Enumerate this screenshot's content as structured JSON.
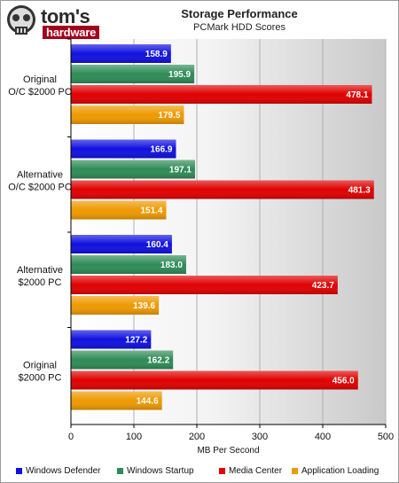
{
  "header": {
    "brand": "tom's",
    "brand_sub": "hardware",
    "title": "Storage Performance",
    "subtitle": "PCMark HDD Scores"
  },
  "colors": {
    "Windows Defender": "#1010e0",
    "Windows Startup": "#2e8b57",
    "Media Center": "#e00000",
    "Application Loading": "#ee9900"
  },
  "chart_data": {
    "type": "bar",
    "orientation": "horizontal",
    "title": "Storage Performance",
    "subtitle": "PCMark HDD Scores",
    "xlabel": "MB Per Second",
    "ylabel": "",
    "xlim": [
      0,
      500
    ],
    "xticks": [
      0,
      100,
      200,
      300,
      400,
      500
    ],
    "grid": true,
    "legend_position": "bottom",
    "categories": [
      [
        "Original",
        "O/C $2000 PC"
      ],
      [
        "Alternative",
        "O/C $2000 PC"
      ],
      [
        "Alternative",
        "$2000 PC"
      ],
      [
        "Original",
        "$2000 PC"
      ]
    ],
    "series": [
      {
        "name": "Windows Defender",
        "values": [
          158.9,
          166.9,
          160.4,
          127.2
        ]
      },
      {
        "name": "Windows Startup",
        "values": [
          195.9,
          197.1,
          183.0,
          162.2
        ]
      },
      {
        "name": "Media Center",
        "values": [
          478.1,
          481.3,
          423.7,
          456.0
        ]
      },
      {
        "name": "Application Loading",
        "values": [
          179.5,
          151.4,
          139.6,
          144.6
        ]
      }
    ]
  }
}
